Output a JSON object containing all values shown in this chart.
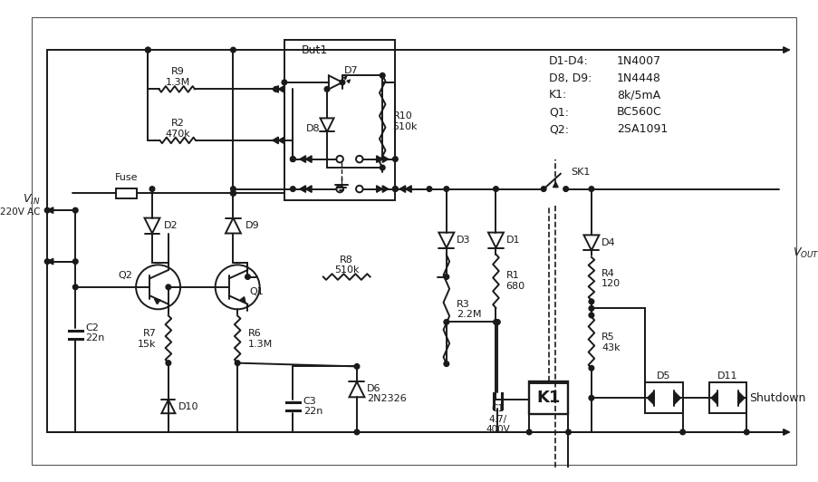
{
  "fig_width": 9.04,
  "fig_height": 5.32,
  "bg_color": "#ffffff",
  "line_color": "#1a1a1a",
  "parts_list": [
    [
      "D1-D4:",
      "1N4007"
    ],
    [
      "D8, D9:",
      "1N4448"
    ],
    [
      "K1:",
      "8k/5mA"
    ],
    [
      "Q1:",
      "BC560C"
    ],
    [
      "Q2:",
      "2SA1091"
    ]
  ]
}
